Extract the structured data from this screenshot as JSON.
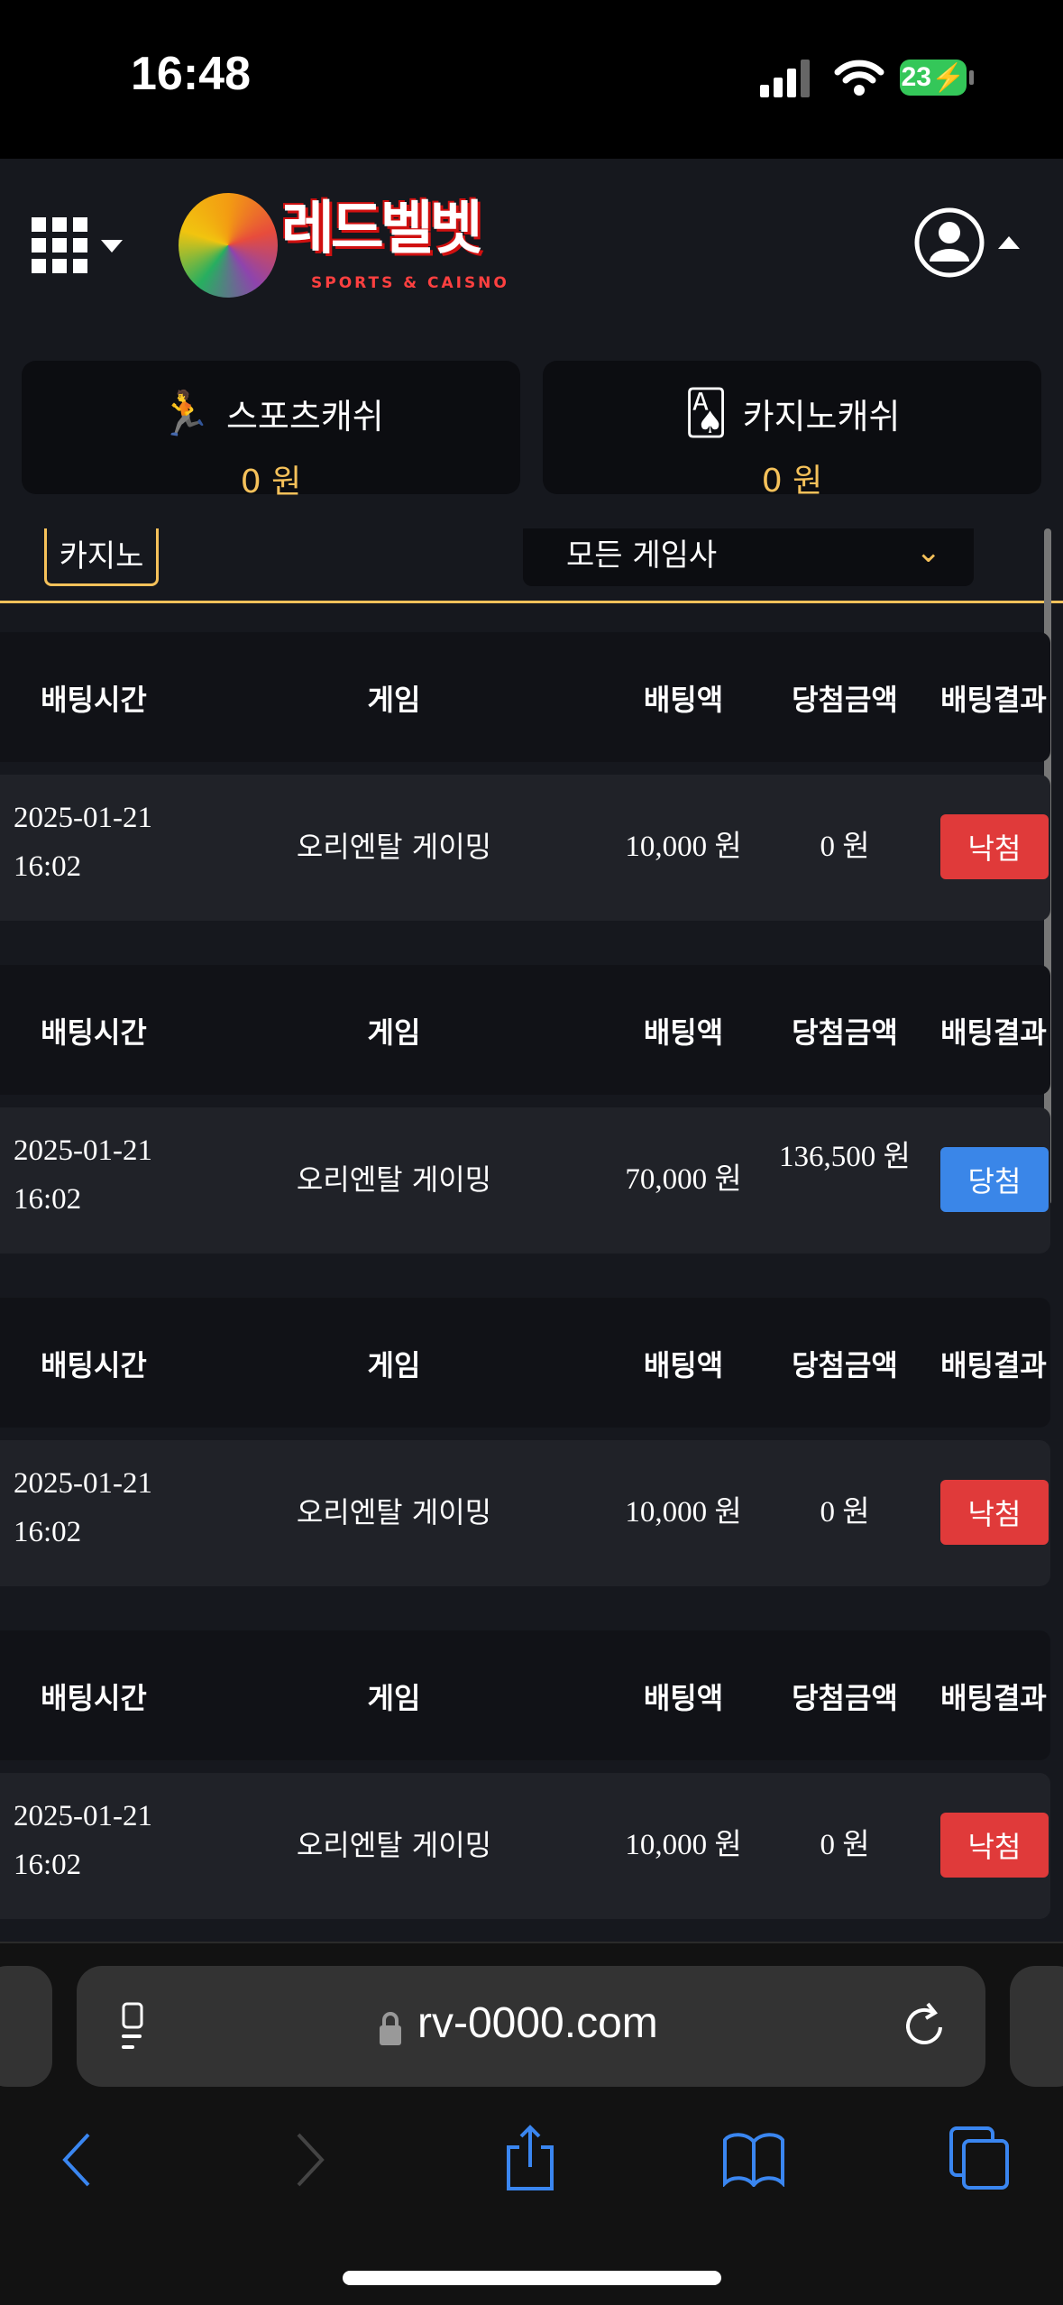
{
  "status_bar": {
    "time": "16:48",
    "battery": "23"
  },
  "header": {
    "logo_text": "레드벨벳",
    "logo_sub": "SPORTS & CAISNO"
  },
  "cash": [
    {
      "label": "스포츠캐쉬",
      "amount": "0 원",
      "icon": "runner-icon"
    },
    {
      "label": "카지노캐쉬",
      "amount": "0 원",
      "icon": "cards-icon"
    }
  ],
  "filter": {
    "tab": "카지노",
    "dropdown": "모든 게임사"
  },
  "columns": [
    "배팅시간",
    "게임",
    "배팅액",
    "당첨금액",
    "배팅결과"
  ],
  "rows": [
    {
      "date": "2025-01-21",
      "time": "16:02",
      "game": "오리엔탈 게이밍",
      "bet": "10,000 원",
      "win": "0 원",
      "result": "낙첨",
      "result_color": "#e03a3a"
    },
    {
      "date": "2025-01-21",
      "time": "16:02",
      "game": "오리엔탈 게이밍",
      "bet": "70,000 원",
      "win": "136,500 원",
      "result": "당첨",
      "result_color": "#3a86e8"
    },
    {
      "date": "2025-01-21",
      "time": "16:02",
      "game": "오리엔탈 게이밍",
      "bet": "10,000 원",
      "win": "0 원",
      "result": "낙첨",
      "result_color": "#e03a3a"
    },
    {
      "date": "2025-01-21",
      "time": "16:02",
      "game": "오리엔탈 게이밍",
      "bet": "10,000 원",
      "win": "0 원",
      "result": "낙첨",
      "result_color": "#e03a3a"
    }
  ],
  "browser": {
    "url": "rv-0000.com"
  },
  "colors": {
    "accent": "#f5c15a",
    "loss": "#e03a3a",
    "win": "#3a86e8",
    "ios_blue": "#3a86f0"
  }
}
